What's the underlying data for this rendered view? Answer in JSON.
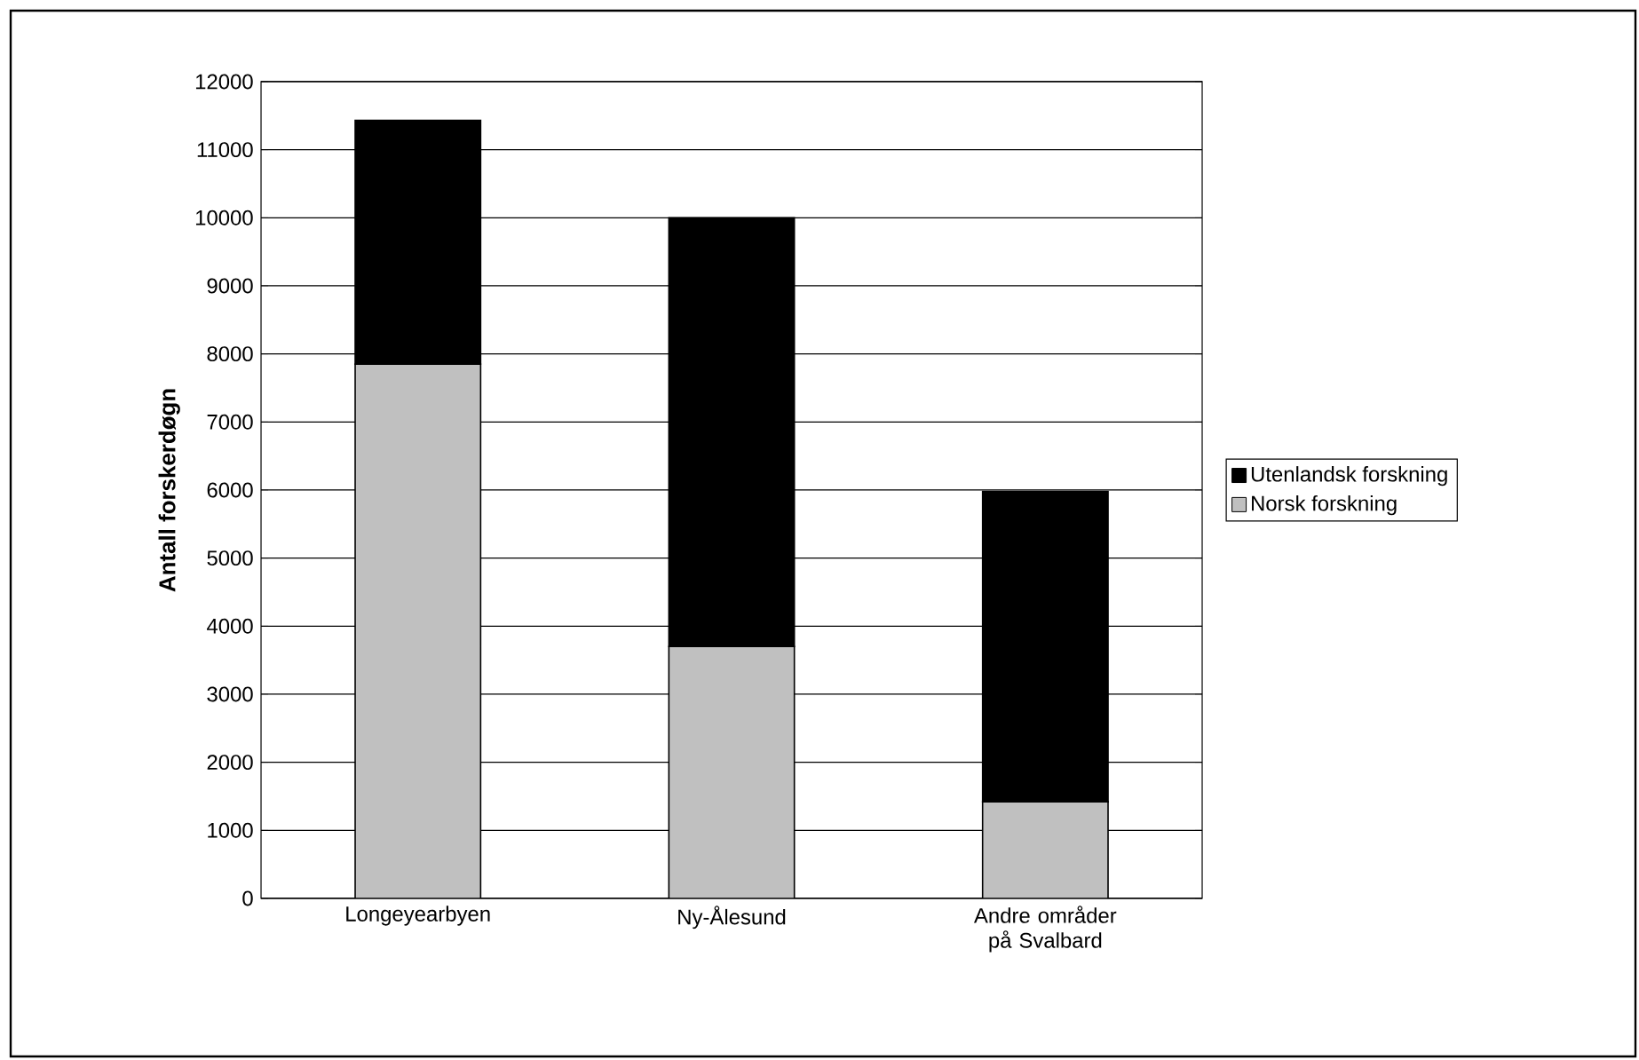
{
  "chart_data": {
    "type": "bar",
    "stacked": true,
    "ylabel": "Antall forskerdøgn",
    "categories": [
      "Longeyearbyen",
      "Ny-Ålesund",
      "Andre områder på Svalbard"
    ],
    "series": [
      {
        "name": "Norsk forskning",
        "color": "#c0c0c0",
        "values": [
          7850,
          3700,
          1420
        ]
      },
      {
        "name": "Utenlandsk forskning",
        "color": "#000000",
        "values": [
          3580,
          6300,
          4560
        ]
      }
    ],
    "ylim": [
      0,
      12000
    ],
    "yticks": [
      0,
      1000,
      2000,
      3000,
      4000,
      5000,
      6000,
      7000,
      8000,
      9000,
      10000,
      11000,
      12000
    ],
    "grid": "y",
    "legend": "right"
  }
}
